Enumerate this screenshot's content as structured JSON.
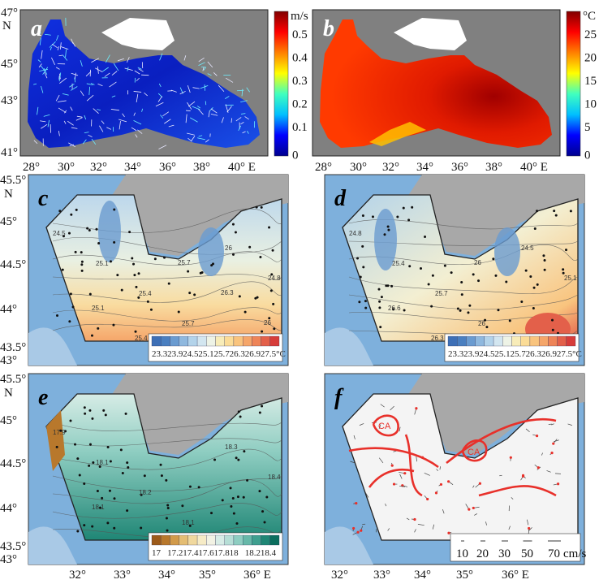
{
  "panels": {
    "a": {
      "label": "a",
      "colorbar": {
        "unit": "m/s",
        "ticks": [
          "0.5",
          "0.4",
          "0.3",
          "0.2",
          "0.1",
          "0"
        ],
        "colors": [
          "#00008f",
          "#0000ff",
          "#00bfff",
          "#40ffbf",
          "#ffff00",
          "#ff8000",
          "#ff0000",
          "#800000"
        ]
      }
    },
    "b": {
      "label": "b",
      "colorbar": {
        "unit": "°C",
        "ticks": [
          "25",
          "20",
          "15",
          "10",
          "5",
          "0"
        ],
        "colors": [
          "#00008f",
          "#0000ff",
          "#00bfff",
          "#40ffbf",
          "#ffff00",
          "#ff8000",
          "#ff0000",
          "#800000"
        ]
      }
    },
    "c": {
      "label": "c",
      "colorbar": {
        "ticks": [
          "23.3",
          "23.9",
          "24.5",
          "25.1",
          "25.7",
          "26.3",
          "26.9",
          "27.5°C"
        ],
        "colors": [
          "#3d6fb6",
          "#4a7fc0",
          "#6a9bd0",
          "#8fb8de",
          "#b3d3ea",
          "#d3e6f0",
          "#eef3e6",
          "#f8ecb8",
          "#fbdc97",
          "#f9c47e",
          "#f5a66a",
          "#ee8458",
          "#e3604a",
          "#d63c3a"
        ]
      },
      "contour_labels": [
        "24.5",
        "25.1",
        "25.4",
        "25.7",
        "26",
        "24.8",
        "25.1",
        "25.4",
        "25.7",
        "26.3",
        "26"
      ]
    },
    "d": {
      "label": "d",
      "colorbar": {
        "ticks": [
          "23.3",
          "23.9",
          "24.5",
          "25.1",
          "25.7",
          "26.3",
          "26.9",
          "27.5°C"
        ],
        "colors": [
          "#3d6fb6",
          "#4a7fc0",
          "#6a9bd0",
          "#8fb8de",
          "#b3d3ea",
          "#d3e6f0",
          "#eef3e6",
          "#f8ecb8",
          "#fbdc97",
          "#f9c47e",
          "#f5a66a",
          "#ee8458",
          "#e3604a",
          "#d63c3a"
        ]
      },
      "contour_labels": [
        "24.8",
        "25.4",
        "25.7",
        "26",
        "24.5",
        "25.1",
        "26.6",
        "26.3",
        "26"
      ]
    },
    "e": {
      "label": "e",
      "colorbar": {
        "ticks": [
          "17",
          "17.2",
          "17.4",
          "17.6",
          "17.8",
          "18",
          "18.2",
          "18.4"
        ],
        "colors": [
          "#9c5a1a",
          "#b8782c",
          "#d19a4a",
          "#e4bd73",
          "#f0d89e",
          "#f6ebc6",
          "#f2f2e4",
          "#d7ece6",
          "#b6ded6",
          "#8ecdc1",
          "#67b8a9",
          "#3f9f8f",
          "#1f8675",
          "#0c6e5e"
        ]
      },
      "contour_labels": [
        "17.9",
        "18.1",
        "18.2",
        "18.1",
        "18.3",
        "18.4",
        "18.1"
      ]
    },
    "f": {
      "label": "f",
      "eddy_labels": [
        "CA",
        "CA"
      ],
      "legend": {
        "scales": [
          "10",
          "20",
          "30",
          "50",
          "70"
        ],
        "unit": "cm/s"
      },
      "current_color": "#e8302a"
    }
  },
  "axes": {
    "top_lon_ticks": [
      "28°",
      "30°",
      "32°",
      "34°",
      "36°",
      "38°",
      "40° E"
    ],
    "top_lat_ticks": [
      "47°",
      "45°",
      "43°",
      "41°"
    ],
    "top_lat_unit": "N",
    "bottom_lon_ticks": [
      "32°",
      "33°",
      "34°",
      "35°",
      "36° E"
    ],
    "bottom_lat_ticks": [
      "45.5°",
      "45°",
      "44.5°",
      "44°",
      "43.5°",
      "43°"
    ],
    "bottom_lat_unit": "N"
  }
}
